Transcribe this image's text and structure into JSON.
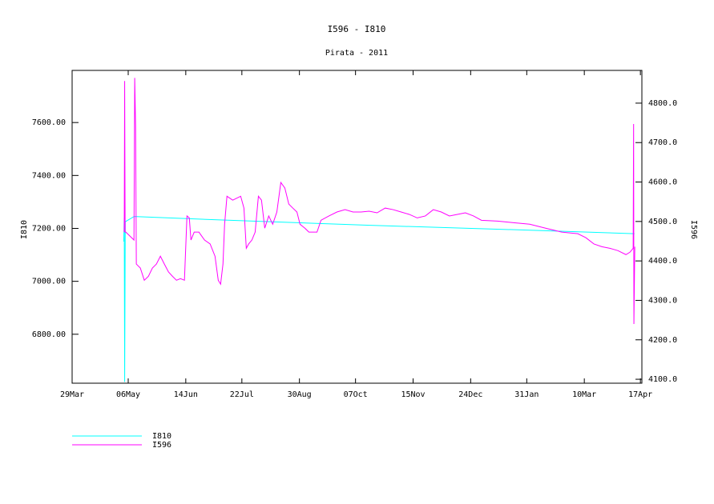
{
  "chart_data": {
    "type": "line",
    "title": "I596 - I810",
    "subtitle": "Pirata - 2011",
    "ylabel": "I810",
    "y2label": "I596",
    "xlim": [
      0,
      386
    ],
    "xticks": [
      {
        "value": 0,
        "label": "29Mar"
      },
      {
        "value": 38,
        "label": "06May"
      },
      {
        "value": 77,
        "label": "14Jun"
      },
      {
        "value": 115,
        "label": "22Jul"
      },
      {
        "value": 154,
        "label": "30Aug"
      },
      {
        "value": 192,
        "label": "07Oct"
      },
      {
        "value": 231,
        "label": "15Nov"
      },
      {
        "value": 270,
        "label": "24Dec"
      },
      {
        "value": 308,
        "label": "31Jan"
      },
      {
        "value": 347,
        "label": "10Mar"
      },
      {
        "value": 385,
        "label": "17Apr"
      }
    ],
    "ylim": [
      6615,
      7797
    ],
    "yticks": [
      {
        "value": 6800,
        "label": "6800.00"
      },
      {
        "value": 7000,
        "label": "7000.00"
      },
      {
        "value": 7200,
        "label": "7200.00"
      },
      {
        "value": 7400,
        "label": "7400.00"
      },
      {
        "value": 7600,
        "label": "7600.00"
      }
    ],
    "y2lim": [
      4090,
      4883
    ],
    "y2ticks": [
      {
        "value": 4100,
        "label": "4100.0"
      },
      {
        "value": 4200,
        "label": "4200.0"
      },
      {
        "value": 4300,
        "label": "4300.0"
      },
      {
        "value": 4400,
        "label": "4400.0"
      },
      {
        "value": 4500,
        "label": "4500.0"
      },
      {
        "value": 4600,
        "label": "4600.0"
      },
      {
        "value": 4700,
        "label": "4700.0"
      },
      {
        "value": 4800,
        "label": "4800.0"
      }
    ],
    "series": [
      {
        "name": "I810",
        "color": "#00ffff",
        "axis": "y",
        "x": [
          35.0,
          35.3,
          35.6,
          36,
          42,
          100,
          200,
          300,
          381
        ],
        "values": [
          7150,
          7240,
          6620,
          7225,
          7245,
          7232,
          7212,
          7195,
          7180
        ]
      },
      {
        "name": "I596",
        "color": "#ff00ff",
        "axis": "y2",
        "x": [
          35.3,
          35.6,
          35.9,
          36.4,
          41.9,
          42.4,
          43.0,
          43.5,
          46.2,
          48.9,
          51.7,
          54.4,
          57.1,
          59.8,
          62.5,
          65.3,
          68.0,
          70.7,
          73.4,
          76.1,
          77.8,
          79.4,
          80.5,
          82.7,
          85.9,
          89.7,
          93.5,
          96.8,
          99.0,
          100.6,
          102.2,
          103.3,
          104.9,
          108.8,
          114.2,
          116.4,
          118.0,
          119.6,
          121.8,
          124.0,
          126.2,
          128.3,
          130.5,
          133.2,
          135.9,
          138.7,
          141.4,
          144.1,
          146.8,
          149.5,
          152.3,
          154.4,
          157.7,
          160.4,
          165.9,
          168.6,
          174.0,
          179.4,
          184.9,
          190.3,
          195.8,
          201.2,
          206.6,
          212.1,
          217.5,
          222.9,
          228.4,
          233.8,
          239.3,
          244.7,
          250.1,
          255.6,
          261.0,
          266.4,
          271.9,
          277.3,
          288.2,
          299.1,
          310.0,
          320.8,
          331.7,
          342.6,
          348.0,
          353.5,
          358.9,
          364.3,
          369.8,
          375.2,
          377.9,
          380.1,
          380.4,
          380.6,
          381.2
        ],
        "values": [
          4473,
          4856,
          4473,
          4473,
          4453,
          4864,
          4741,
          4392,
          4382,
          4351,
          4361,
          4382,
          4392,
          4412,
          4392,
          4372,
          4361,
          4351,
          4355,
          4351,
          4514,
          4509,
          4453,
          4473,
          4473,
          4453,
          4443,
          4412,
          4351,
          4341,
          4392,
          4493,
          4564,
          4554,
          4564,
          4534,
          4432,
          4443,
          4453,
          4473,
          4564,
          4554,
          4483,
          4514,
          4493,
          4524,
          4599,
          4585,
          4544,
          4534,
          4524,
          4493,
          4483,
          4473,
          4473,
          4503,
          4514,
          4524,
          4530,
          4524,
          4524,
          4526,
          4522,
          4534,
          4530,
          4524,
          4518,
          4509,
          4514,
          4530,
          4524,
          4514,
          4518,
          4522,
          4514,
          4503,
          4501,
          4497,
          4493,
          4483,
          4473,
          4469,
          4459,
          4443,
          4436,
          4432,
          4426,
          4416,
          4422,
          4432,
          4747,
          4240,
          4436
        ]
      }
    ]
  }
}
